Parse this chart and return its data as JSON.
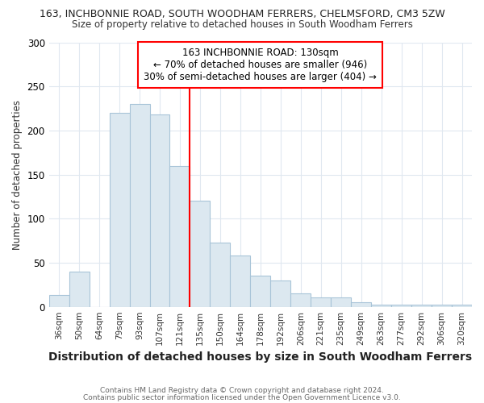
{
  "title1": "163, INCHBONNIE ROAD, SOUTH WOODHAM FERRERS, CHELMSFORD, CM3 5ZW",
  "title2": "Size of property relative to detached houses in South Woodham Ferrers",
  "xlabel": "Distribution of detached houses by size in South Woodham Ferrers",
  "ylabel": "Number of detached properties",
  "footer1": "Contains HM Land Registry data © Crown copyright and database right 2024.",
  "footer2": "Contains public sector information licensed under the Open Government Licence v3.0.",
  "categories": [
    "36sqm",
    "50sqm",
    "64sqm",
    "79sqm",
    "93sqm",
    "107sqm",
    "121sqm",
    "135sqm",
    "150sqm",
    "164sqm",
    "178sqm",
    "192sqm",
    "206sqm",
    "221sqm",
    "235sqm",
    "249sqm",
    "263sqm",
    "277sqm",
    "292sqm",
    "306sqm",
    "320sqm"
  ],
  "values": [
    13,
    40,
    0,
    220,
    230,
    218,
    160,
    120,
    73,
    58,
    35,
    30,
    15,
    11,
    11,
    5,
    2,
    2,
    2,
    2,
    2
  ],
  "bar_color": "#dce8f0",
  "bar_edge_color": "#a8c4d8",
  "vline_color": "red",
  "vline_pos": 7.0,
  "annotation_line1": "163 INCHBONNIE ROAD: 130sqm",
  "annotation_line2": "← 70% of detached houses are smaller (946)",
  "annotation_line3": "30% of semi-detached houses are larger (404) →",
  "ylim": [
    0,
    300
  ],
  "yticks": [
    0,
    50,
    100,
    150,
    200,
    250,
    300
  ],
  "bg_color": "white",
  "grid_color": "#e0e8f0",
  "title1_fontsize": 9.0,
  "title2_fontsize": 8.5,
  "ylabel_fontsize": 8.5,
  "xlabel_fontsize": 10,
  "footer_fontsize": 6.5,
  "footer_color": "#666666",
  "ann_fontsize": 8.5
}
